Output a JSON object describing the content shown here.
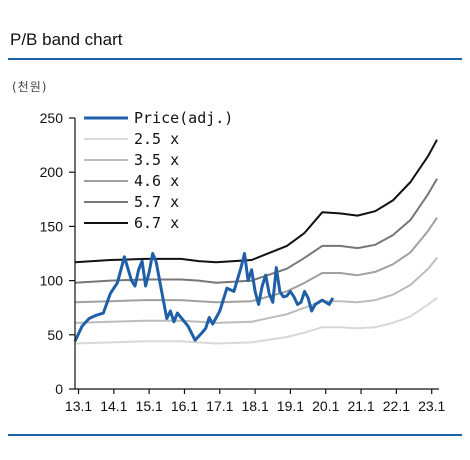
{
  "header": {
    "title": "P/B band chart",
    "unit": "(천원)"
  },
  "colors": {
    "price": "#1f5fa8",
    "band_25": "#d8d8d8",
    "band_35": "#bcbcbc",
    "band_46": "#a0a0a0",
    "band_57": "#777777",
    "band_67": "#111111",
    "rule": "#1f5fa8"
  },
  "chart_data": {
    "type": "line",
    "title": "P/B band chart",
    "ylabel": "(천원)",
    "xlabel": "",
    "ylim": [
      0,
      250
    ],
    "xlim": [
      13.0,
      23.25
    ],
    "y_ticks": [
      0,
      50,
      100,
      150,
      200,
      250
    ],
    "x_ticks": [
      13.1,
      14.1,
      15.1,
      16.1,
      17.1,
      18.1,
      19.1,
      20.1,
      21.1,
      22.1,
      23.1
    ],
    "x_tick_labels": [
      "13.1",
      "14.1",
      "15.1",
      "16.1",
      "17.1",
      "18.1",
      "19.1",
      "20.1",
      "21.1",
      "22.1",
      "23.1"
    ],
    "grid": false,
    "legend_position": "top-left",
    "series": [
      {
        "name": "Price(adj.)",
        "color_key": "price",
        "x": [
          13.0,
          13.2,
          13.4,
          13.6,
          13.8,
          14.0,
          14.2,
          14.4,
          14.6,
          14.7,
          14.8,
          14.9,
          15.0,
          15.1,
          15.2,
          15.3,
          15.5,
          15.6,
          15.7,
          15.8,
          15.9,
          16.0,
          16.2,
          16.4,
          16.6,
          16.7,
          16.8,
          16.9,
          17.1,
          17.3,
          17.5,
          17.7,
          17.8,
          17.9,
          18.0,
          18.1,
          18.2,
          18.3,
          18.4,
          18.5,
          18.6,
          18.7,
          18.8,
          18.9,
          19.0,
          19.1,
          19.2,
          19.3,
          19.4,
          19.5,
          19.6,
          19.7,
          19.8,
          19.9,
          20.0,
          20.1,
          20.2,
          20.3
        ],
        "y": [
          44,
          58,
          65,
          68,
          70,
          88,
          98,
          122,
          100,
          95,
          110,
          118,
          95,
          108,
          125,
          117,
          82,
          65,
          72,
          62,
          70,
          66,
          58,
          45,
          52,
          56,
          66,
          60,
          72,
          93,
          90,
          112,
          125,
          100,
          110,
          90,
          78,
          95,
          105,
          88,
          80,
          112,
          90,
          85,
          86,
          90,
          85,
          78,
          80,
          90,
          84,
          72,
          78,
          80,
          82,
          80,
          78,
          84
        ]
      },
      {
        "name": "2.5 x",
        "color_key": "band_25",
        "x": [
          13.0,
          14.0,
          15.0,
          16.0,
          16.5,
          17.0,
          18.0,
          19.0,
          19.5,
          20.0,
          20.5,
          21.0,
          21.5,
          22.0,
          22.5,
          23.0,
          23.25
        ],
        "y": [
          42,
          43,
          44,
          44,
          43,
          42,
          43,
          48,
          52,
          57,
          57,
          56,
          57,
          61,
          67,
          78,
          84
        ]
      },
      {
        "name": "3.5 x",
        "color_key": "band_35",
        "x": [
          13.0,
          14.0,
          15.0,
          16.0,
          16.5,
          17.0,
          18.0,
          19.0,
          19.5,
          20.0,
          20.5,
          21.0,
          21.5,
          22.0,
          22.5,
          23.0,
          23.25
        ],
        "y": [
          61,
          62,
          63,
          63,
          62,
          61,
          62,
          69,
          75,
          81,
          81,
          80,
          82,
          87,
          96,
          111,
          121
        ]
      },
      {
        "name": "4.6 x",
        "color_key": "band_46",
        "x": [
          13.0,
          14.0,
          15.0,
          16.0,
          16.5,
          17.0,
          18.0,
          19.0,
          19.5,
          20.0,
          20.5,
          21.0,
          21.5,
          22.0,
          22.5,
          23.0,
          23.25
        ],
        "y": [
          80,
          81,
          82,
          82,
          81,
          80,
          81,
          90,
          98,
          107,
          107,
          105,
          108,
          115,
          126,
          146,
          158
        ]
      },
      {
        "name": "5.7 x",
        "color_key": "band_57",
        "x": [
          13.0,
          14.0,
          15.0,
          16.0,
          16.5,
          17.0,
          18.0,
          19.0,
          19.5,
          20.0,
          20.5,
          21.0,
          21.5,
          22.0,
          22.5,
          23.0,
          23.25
        ],
        "y": [
          98,
          100,
          101,
          101,
          100,
          98,
          100,
          111,
          121,
          132,
          132,
          130,
          133,
          142,
          156,
          180,
          194
        ]
      },
      {
        "name": "6.7 x",
        "color_key": "band_67",
        "x": [
          13.0,
          14.0,
          15.0,
          16.0,
          16.5,
          17.0,
          18.0,
          19.0,
          19.5,
          20.0,
          20.5,
          21.0,
          21.5,
          22.0,
          22.5,
          23.0,
          23.25
        ],
        "y": [
          117,
          119,
          120,
          120,
          118,
          117,
          119,
          132,
          144,
          163,
          162,
          160,
          164,
          174,
          191,
          215,
          230
        ]
      }
    ]
  }
}
